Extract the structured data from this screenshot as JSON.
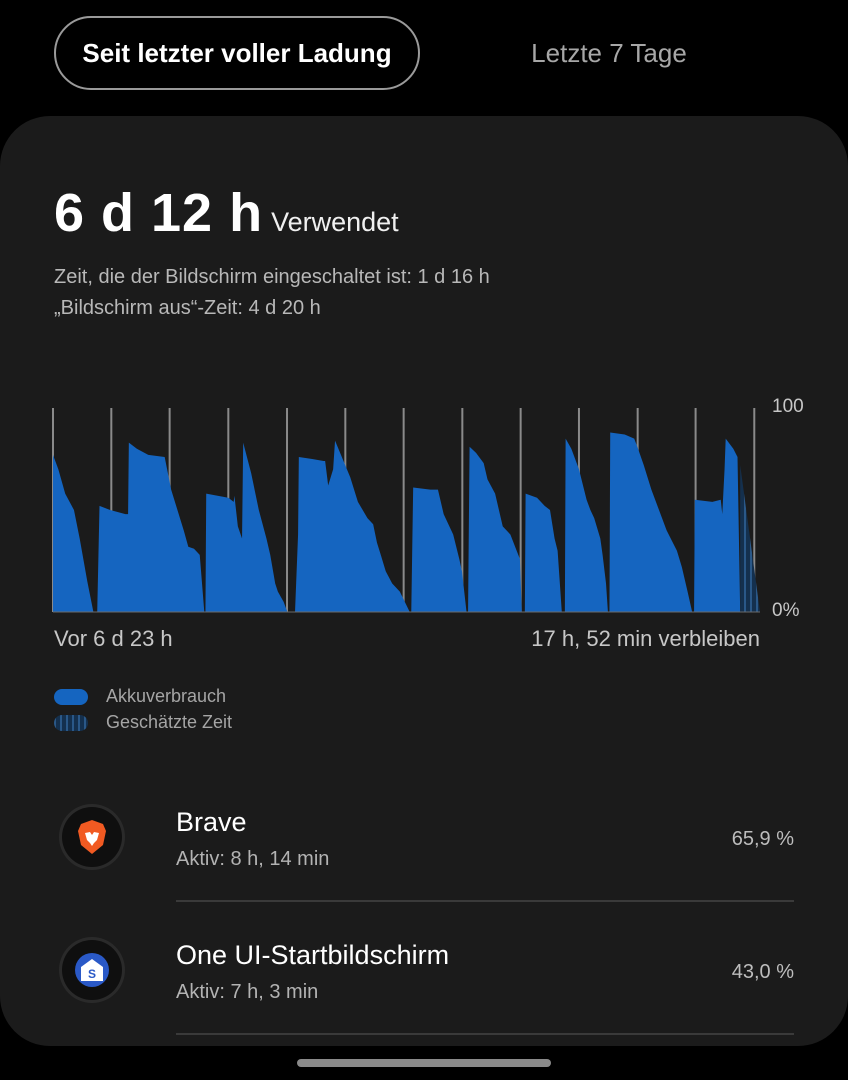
{
  "tabs": {
    "active": "Seit letzter voller Ladung",
    "inactive": "Letzte 7 Tage"
  },
  "summary": {
    "used_value": "6 d 12 h",
    "used_label": "Verwendet",
    "screen_on": "Zeit, die der Bildschirm eingeschaltet ist: 1 d 16 h",
    "screen_off": "„Bildschirm aus“-Zeit: 4 d 20 h"
  },
  "colors": {
    "usage": "#1565c0",
    "estimated": "#1b3a5c",
    "gridline": "#8a8a8a",
    "background": "#1b1b1b"
  },
  "chart_data": {
    "type": "area",
    "y_ticks": [
      "100",
      "0%"
    ],
    "ylim": [
      0,
      100
    ],
    "x_start_label": "Vor 6 d 23 h",
    "x_end_label": "17 h, 52 min verbleiben",
    "x_range_hours": [
      0,
      185.5
    ],
    "gridlines_hours": [
      0,
      15.3,
      30.6,
      46,
      61.4,
      76.7,
      92,
      107.4,
      122.7,
      138,
      153.4,
      168.6,
      184
    ],
    "usage": [
      [
        0,
        77
      ],
      [
        1.4,
        70
      ],
      [
        3.2,
        58
      ],
      [
        5.5,
        50
      ],
      [
        7,
        36
      ],
      [
        9,
        15
      ],
      [
        10.6,
        0
      ],
      [
        11.6,
        0
      ],
      [
        12.2,
        52
      ],
      [
        15,
        50
      ],
      [
        19,
        48
      ],
      [
        19.7,
        48
      ],
      [
        19.9,
        83
      ],
      [
        22,
        80
      ],
      [
        25,
        77
      ],
      [
        29.3,
        76
      ],
      [
        31,
        60
      ],
      [
        34.3,
        40
      ],
      [
        35.5,
        32
      ],
      [
        37,
        31
      ],
      [
        38.5,
        28
      ],
      [
        39.7,
        0
      ],
      [
        40,
        0
      ],
      [
        40.2,
        58
      ],
      [
        46,
        56
      ],
      [
        47.4,
        54
      ],
      [
        47.6,
        57
      ],
      [
        48.5,
        42
      ],
      [
        49.6,
        36
      ],
      [
        49.9,
        83
      ],
      [
        52,
        68
      ],
      [
        54,
        50
      ],
      [
        56,
        36
      ],
      [
        57,
        28
      ],
      [
        58.3,
        14
      ],
      [
        59,
        10
      ],
      [
        60.5,
        5
      ],
      [
        61.5,
        0
      ],
      [
        62.5,
        0
      ],
      [
        63.5,
        0
      ],
      [
        64.3,
        38
      ],
      [
        64.5,
        76
      ],
      [
        68,
        75
      ],
      [
        71,
        74
      ],
      [
        71.4,
        74
      ],
      [
        72.2,
        62
      ],
      [
        73.5,
        70
      ],
      [
        74,
        84
      ],
      [
        76,
        75
      ],
      [
        78,
        66
      ],
      [
        80,
        54
      ],
      [
        82.5,
        46
      ],
      [
        84,
        43
      ],
      [
        85,
        34
      ],
      [
        86,
        28
      ],
      [
        87.3,
        20
      ],
      [
        89,
        14
      ],
      [
        91,
        10
      ],
      [
        93.6,
        0
      ],
      [
        94,
        0
      ],
      [
        94.5,
        61
      ],
      [
        99,
        60
      ],
      [
        101,
        60
      ],
      [
        102.5,
        48
      ],
      [
        105,
        38
      ],
      [
        106.6,
        26
      ],
      [
        107.3,
        20
      ],
      [
        108.5,
        0
      ],
      [
        108.9,
        0
      ],
      [
        109.3,
        81
      ],
      [
        111,
        78
      ],
      [
        113,
        73
      ],
      [
        114,
        65
      ],
      [
        116,
        58
      ],
      [
        118,
        42
      ],
      [
        120,
        38
      ],
      [
        122.5,
        26
      ],
      [
        123,
        0
      ],
      [
        123.8,
        0
      ],
      [
        124,
        58
      ],
      [
        127,
        56
      ],
      [
        129,
        52
      ],
      [
        130.4,
        50
      ],
      [
        131.6,
        36
      ],
      [
        132.4,
        30
      ],
      [
        133.5,
        0
      ],
      [
        134.3,
        0
      ],
      [
        134.5,
        85
      ],
      [
        136,
        80
      ],
      [
        138,
        70
      ],
      [
        140,
        55
      ],
      [
        141,
        50
      ],
      [
        142,
        46
      ],
      [
        143.6,
        36
      ],
      [
        144.2,
        28
      ],
      [
        145.1,
        14
      ],
      [
        145.6,
        0
      ],
      [
        146,
        0
      ],
      [
        146.2,
        88
      ],
      [
        150,
        87
      ],
      [
        152.5,
        85
      ],
      [
        153.5,
        80
      ],
      [
        155,
        72
      ],
      [
        157,
        60
      ],
      [
        159,
        50
      ],
      [
        161,
        40
      ],
      [
        163.7,
        30
      ],
      [
        165,
        22
      ],
      [
        166.5,
        10
      ],
      [
        167.7,
        0
      ],
      [
        168.2,
        0
      ],
      [
        168.4,
        55
      ],
      [
        173,
        54
      ],
      [
        175.2,
        55
      ],
      [
        175.6,
        48
      ],
      [
        176.2,
        70
      ],
      [
        176.5,
        85
      ],
      [
        178.5,
        80
      ],
      [
        179.6,
        76
      ],
      [
        180.3,
        0
      ]
    ],
    "estimated": [
      [
        180.3,
        72
      ],
      [
        185.5,
        0
      ]
    ],
    "legend": [
      {
        "label": "Akkuverbrauch"
      },
      {
        "label": "Geschätzte Zeit"
      }
    ]
  },
  "apps": [
    {
      "name": "Brave",
      "active": "Aktiv: 8 h, 14 min",
      "percent": "65,9 %",
      "icon": "brave-lion-icon"
    },
    {
      "name": "One UI-Startbildschirm",
      "active": "Aktiv: 7 h, 3 min",
      "percent": "43,0 %",
      "icon": "one-ui-home-icon",
      "icon_glyph": "S"
    }
  ]
}
